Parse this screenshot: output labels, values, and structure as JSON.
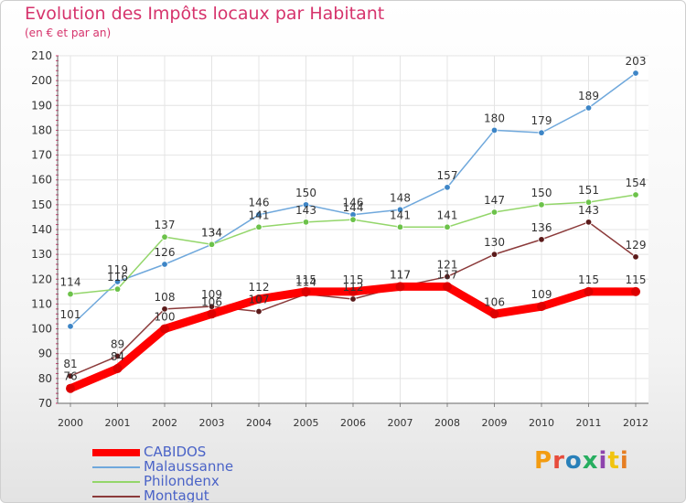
{
  "title": "Evolution des Impôts locaux par Habitant",
  "subtitle": "(en € et par an)",
  "logo": {
    "text": "Proxiti",
    "colors": [
      "#f39c12",
      "#e74c3c",
      "#2980b9",
      "#27ae60",
      "#8e44ad",
      "#f1c40f",
      "#e67e22"
    ]
  },
  "chart_data": {
    "type": "line",
    "x": [
      "2000",
      "2001",
      "2002",
      "2003",
      "2004",
      "2005",
      "2006",
      "2007",
      "2008",
      "2009",
      "2010",
      "2011",
      "2012"
    ],
    "ylim": [
      70,
      210
    ],
    "yticks": [
      70,
      80,
      90,
      100,
      110,
      120,
      130,
      140,
      150,
      160,
      170,
      180,
      190,
      200,
      210
    ],
    "grid": true,
    "series": [
      {
        "name": "CABIDOS",
        "color": "#ff0000",
        "dot_color": "#dd0000",
        "thick": true,
        "values": [
          76,
          84,
          100,
          106,
          112,
          115,
          115,
          117,
          117,
          106,
          109,
          115,
          115
        ],
        "labels": [
          "76",
          "84",
          "100",
          "106",
          "112",
          "115",
          "115",
          "117",
          "117",
          "106",
          "109",
          "115",
          "115"
        ]
      },
      {
        "name": "Malaussanne",
        "color": "#6fa8dc",
        "dot_color": "#3d85c6",
        "thick": false,
        "values": [
          101,
          119,
          126,
          134,
          146,
          150,
          146,
          148,
          157,
          180,
          179,
          189,
          203
        ],
        "labels": [
          "101",
          "119",
          "126",
          "134",
          "146",
          "150",
          "146",
          "148",
          "157",
          "180",
          "179",
          "189",
          "203"
        ]
      },
      {
        "name": "Philondenx",
        "color": "#93d66a",
        "dot_color": "#6cc24a",
        "thick": false,
        "values": [
          114,
          116,
          137,
          134,
          141,
          143,
          144,
          141,
          141,
          147,
          150,
          151,
          154
        ],
        "labels": [
          "114",
          "116",
          "137",
          "134",
          "141",
          "143",
          "144",
          "141",
          "141",
          "147",
          "150",
          "151",
          "154"
        ]
      },
      {
        "name": "Montagut",
        "color": "#8b3a3a",
        "dot_color": "#5b1a1a",
        "thick": false,
        "values": [
          81,
          89,
          108,
          109,
          107,
          114,
          112,
          117,
          121,
          130,
          136,
          143,
          129
        ],
        "labels": [
          "81",
          "89",
          "108",
          "109",
          "107",
          "114",
          "112",
          "117",
          "121",
          "130",
          "136",
          "143",
          "129"
        ]
      }
    ]
  }
}
